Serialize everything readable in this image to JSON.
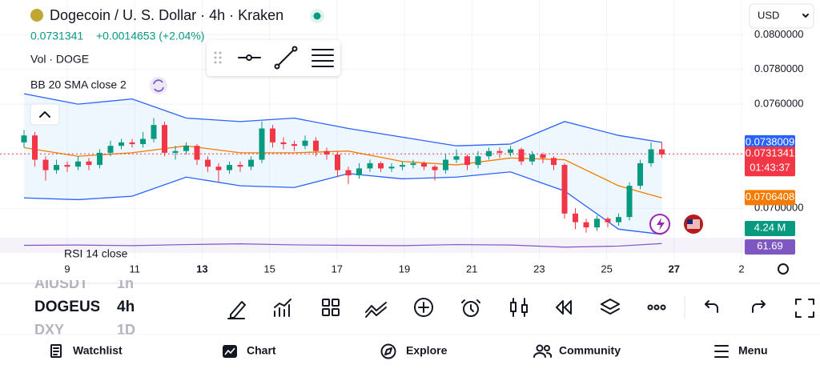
{
  "header": {
    "title": "Dogecoin / U. S. Dollar · 4h · Kraken",
    "price": "0.0731341",
    "change": "+0.0014653 (+2.04%)",
    "currency": "USD"
  },
  "indicators": [
    "Vol · DOGE",
    "BB 20 SMA close 2",
    "RSI 14 close"
  ],
  "chart_data": {
    "type": "candlestick",
    "ylim": [
      0.0684,
      0.082
    ],
    "yticks": [
      {
        "value": 0.08,
        "label": "0.0800000"
      },
      {
        "value": 0.078,
        "label": "0.0780000"
      },
      {
        "value": 0.076,
        "label": "0.0760000"
      },
      {
        "value": 0.07,
        "label": "0.0700000"
      }
    ],
    "x_labels": [
      {
        "label": "9"
      },
      {
        "label": "11"
      },
      {
        "label": "13",
        "emphasis": true
      },
      {
        "label": "15"
      },
      {
        "label": "17"
      },
      {
        "label": "19"
      },
      {
        "label": "21"
      },
      {
        "label": "23"
      },
      {
        "label": "25"
      },
      {
        "label": "27",
        "emphasis": true
      },
      {
        "label": "2"
      }
    ],
    "up_color": "#089981",
    "down_color": "#f23645",
    "open": [
      0.0738,
      0.0742,
      0.0728,
      0.0722,
      0.0725,
      0.0724,
      0.0727,
      0.0725,
      0.0732,
      0.0736,
      0.0738,
      0.0737,
      0.074,
      0.0748,
      0.0732,
      0.0733,
      0.0736,
      0.0728,
      0.0724,
      0.0722,
      0.0725,
      0.0724,
      0.0728,
      0.0746,
      0.0738,
      0.0737,
      0.0736,
      0.0739,
      0.0733,
      0.0731,
      0.0722,
      0.0719,
      0.0723,
      0.0726,
      0.0723,
      0.0724,
      0.0725,
      0.0726,
      0.0724,
      0.0722,
      0.0728,
      0.073,
      0.0725,
      0.073,
      0.0733,
      0.0732,
      0.0734,
      0.0727,
      0.0731,
      0.0729,
      0.0725,
      0.0697,
      0.0692,
      0.0689,
      0.0694,
      0.0692,
      0.0695,
      0.0713,
      0.0726,
      0.0734
    ],
    "high": [
      0.0745,
      0.0744,
      0.073,
      0.0728,
      0.0727,
      0.073,
      0.0729,
      0.0734,
      0.0739,
      0.074,
      0.074,
      0.0744,
      0.0752,
      0.075,
      0.0736,
      0.0738,
      0.0737,
      0.073,
      0.0726,
      0.0727,
      0.0727,
      0.073,
      0.075,
      0.0748,
      0.0741,
      0.0739,
      0.0742,
      0.0741,
      0.0735,
      0.0733,
      0.0724,
      0.0726,
      0.0728,
      0.0727,
      0.0726,
      0.0727,
      0.0728,
      0.0727,
      0.0725,
      0.0731,
      0.0734,
      0.0731,
      0.0733,
      0.0735,
      0.0735,
      0.0736,
      0.0735,
      0.0733,
      0.0732,
      0.073,
      0.0726,
      0.07,
      0.0694,
      0.0696,
      0.0695,
      0.0697,
      0.0715,
      0.0728,
      0.0738,
      0.0738
    ],
    "low": [
      0.0735,
      0.0724,
      0.0716,
      0.072,
      0.0721,
      0.0722,
      0.0722,
      0.0723,
      0.073,
      0.0734,
      0.0735,
      0.0735,
      0.0738,
      0.073,
      0.0728,
      0.0731,
      0.0725,
      0.0721,
      0.0715,
      0.072,
      0.0721,
      0.0722,
      0.0726,
      0.0735,
      0.0734,
      0.0733,
      0.0734,
      0.073,
      0.0728,
      0.0718,
      0.0714,
      0.0717,
      0.0721,
      0.0721,
      0.0721,
      0.0722,
      0.0723,
      0.0722,
      0.0716,
      0.072,
      0.0726,
      0.0722,
      0.0723,
      0.0728,
      0.0729,
      0.073,
      0.0725,
      0.0725,
      0.0726,
      0.0722,
      0.0694,
      0.0688,
      0.0686,
      0.0687,
      0.0689,
      0.069,
      0.0693,
      0.0711,
      0.0724,
      0.0729
    ],
    "close": [
      0.0742,
      0.0728,
      0.0722,
      0.0725,
      0.0724,
      0.0727,
      0.0725,
      0.0732,
      0.0736,
      0.0738,
      0.0737,
      0.074,
      0.0748,
      0.0732,
      0.0733,
      0.0736,
      0.0728,
      0.0724,
      0.0722,
      0.0725,
      0.0724,
      0.0728,
      0.0746,
      0.0738,
      0.0737,
      0.0736,
      0.0739,
      0.0733,
      0.0731,
      0.0722,
      0.0719,
      0.0723,
      0.0726,
      0.0723,
      0.0724,
      0.0725,
      0.0726,
      0.0724,
      0.0722,
      0.0728,
      0.073,
      0.0725,
      0.073,
      0.0733,
      0.0732,
      0.0734,
      0.0727,
      0.0731,
      0.0729,
      0.0725,
      0.0697,
      0.0692,
      0.0689,
      0.0694,
      0.0692,
      0.0695,
      0.0713,
      0.0726,
      0.0734,
      0.0731
    ],
    "band_x": [
      0,
      5,
      10,
      15,
      20,
      25,
      30,
      35,
      40,
      45,
      50,
      55,
      59
    ],
    "bands": [
      {
        "name": "upper",
        "color": "#2962ff",
        "values": [
          0.0766,
          0.076,
          0.0763,
          0.0752,
          0.075,
          0.0752,
          0.0746,
          0.0741,
          0.0736,
          0.0737,
          0.075,
          0.0742,
          0.0738
        ]
      },
      {
        "name": "basis",
        "color": "#f57c00",
        "values": [
          0.0735,
          0.073,
          0.0732,
          0.0736,
          0.0732,
          0.0732,
          0.0733,
          0.0727,
          0.0725,
          0.0729,
          0.0728,
          0.0713,
          0.0706
        ]
      },
      {
        "name": "lower",
        "color": "#2962ff",
        "values": [
          0.0706,
          0.0705,
          0.0707,
          0.0718,
          0.0713,
          0.0712,
          0.072,
          0.0717,
          0.0718,
          0.0721,
          0.071,
          0.0688,
          0.0685
        ]
      }
    ],
    "rsi": {
      "color": "#7e57c2",
      "ylim": [
        0,
        100
      ],
      "values": [
        50,
        52,
        48,
        55,
        60,
        53,
        50,
        48,
        55,
        52,
        38,
        45,
        62
      ]
    },
    "price_badges": [
      {
        "value": 0.0738009,
        "label": "0.0738009",
        "color": "#2962ff"
      },
      {
        "value": 0.0731341,
        "label": "0.0731341",
        "sub": "01:43:37",
        "color": "#f23645"
      },
      {
        "value": 0.0706408,
        "label": "0.0706408",
        "color": "#f57c00"
      }
    ],
    "volume_badge": {
      "label": "4.24 M",
      "color": "#089981"
    },
    "rsi_badge": {
      "label": "61.69",
      "color": "#7e57c2"
    }
  },
  "symbols": [
    {
      "symbol": "AIUSDT",
      "interval": "1h"
    },
    {
      "symbol": "DOGEUSD",
      "interval": "4h"
    },
    {
      "symbol": "DXY",
      "interval": "1D"
    }
  ],
  "nav": [
    "Watchlist",
    "Chart",
    "Explore",
    "Community",
    "Menu"
  ]
}
